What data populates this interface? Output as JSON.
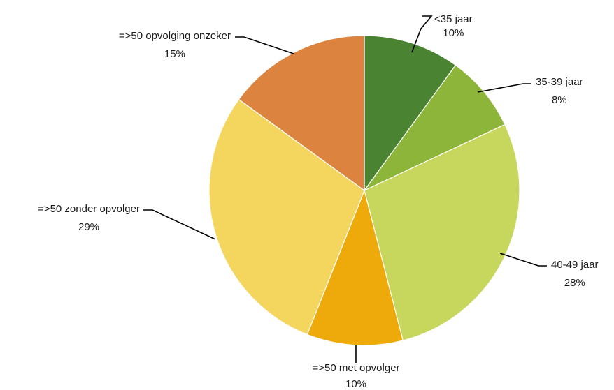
{
  "chart_data": {
    "type": "pie",
    "title": "",
    "slices": [
      {
        "label": "<35 jaar",
        "value": 10,
        "value_label": "10%",
        "color": "#4a8432"
      },
      {
        "label": "35-39 jaar",
        "value": 8,
        "value_label": "8%",
        "color": "#8db53a"
      },
      {
        "label": "40-49 jaar",
        "value": 28,
        "value_label": "28%",
        "color": "#c7d65c"
      },
      {
        "label": "=>50 met opvolger",
        "value": 10,
        "value_label": "10%",
        "color": "#eeaa0b"
      },
      {
        "label": "=>50 zonder opvolger",
        "value": 29,
        "value_label": "29%",
        "color": "#f4d55e"
      },
      {
        "label": "=>50 opvolging onzeker",
        "value": 15,
        "value_label": "15%",
        "color": "#dc843f"
      }
    ],
    "legend": "none",
    "start_angle": "12 o'clock",
    "direction": "clockwise"
  }
}
